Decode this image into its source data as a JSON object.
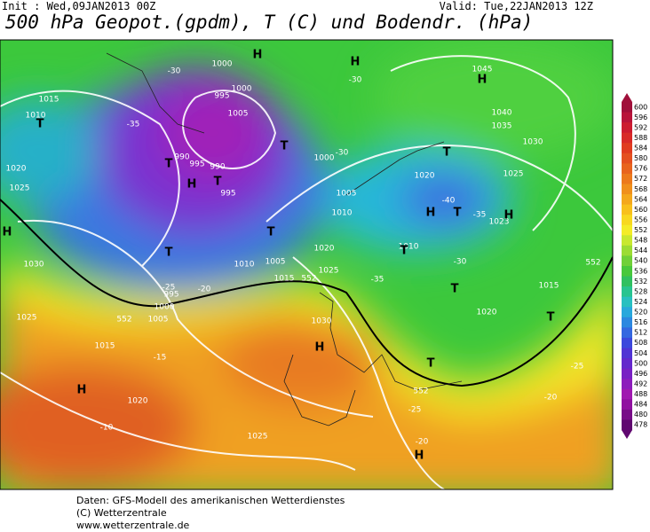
{
  "header": {
    "init": "Init : Wed,09JAN2013 00Z",
    "valid": "Valid: Tue,22JAN2013 12Z",
    "title": "500 hPa Geopot.(gpdm), T (C) und Bodendr. (hPa)"
  },
  "colorbar": {
    "labels": [
      "600",
      "596",
      "592",
      "588",
      "584",
      "580",
      "576",
      "572",
      "568",
      "564",
      "560",
      "556",
      "552",
      "548",
      "544",
      "540",
      "536",
      "532",
      "528",
      "524",
      "520",
      "516",
      "512",
      "508",
      "504",
      "500",
      "496",
      "492",
      "488",
      "484",
      "480",
      "478"
    ],
    "colors": [
      "#a0103a",
      "#b8143a",
      "#cc1c30",
      "#d82a28",
      "#e03c20",
      "#e45020",
      "#e8641e",
      "#ec7a1c",
      "#f0901c",
      "#f4a81c",
      "#f8c01c",
      "#f8d820",
      "#f4ec28",
      "#c8e830",
      "#9cdc34",
      "#70d038",
      "#48c83c",
      "#30c060",
      "#28c490",
      "#28c0c0",
      "#28a8dc",
      "#2c88e0",
      "#3468e0",
      "#3c48dc",
      "#5034d4",
      "#6428cc",
      "#7820c4",
      "#8c1cbc",
      "#a018b0",
      "#9010a0",
      "#780c88",
      "#600870"
    ]
  },
  "map_labels": [
    "1000",
    "995",
    "1000",
    "1005",
    "990",
    "995",
    "990",
    "995",
    "1000",
    "1005",
    "1010",
    "1020",
    "1015",
    "1010",
    "1020",
    "1025",
    "1030",
    "1025",
    "1015",
    "1020",
    "1025",
    "1030",
    "1025",
    "1020",
    "1015",
    "1010",
    "1005",
    "1000",
    "995",
    "1005",
    "1045",
    "1040",
    "1035",
    "1030",
    "1025",
    "1023",
    "1020",
    "1015",
    "1010",
    "-30",
    "-35",
    "-40",
    "-35",
    "-30",
    "-25",
    "-20",
    "-15",
    "-10",
    "-20",
    "-25",
    "-25",
    "-20",
    "-30",
    "-30",
    "-35",
    "552",
    "552",
    "552",
    "552"
  ],
  "centers": [
    "H",
    "H",
    "H",
    "H",
    "H",
    "H",
    "H",
    "H",
    "H",
    "H",
    "T",
    "T",
    "T",
    "T",
    "T",
    "T",
    "T",
    "T",
    "T",
    "T",
    "T",
    "T"
  ],
  "footer": [
    "Daten: GFS-Modell des amerikanischen Wetterdienstes",
    "(C) Wetterzentrale",
    "www.wetterzentrale.de"
  ]
}
